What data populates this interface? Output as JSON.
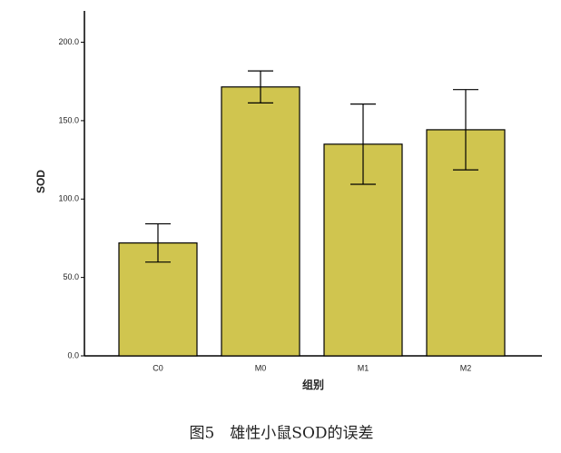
{
  "chart_data": {
    "type": "bar",
    "title": null,
    "y_label": "SOD",
    "x_label": "组别",
    "caption": "图5　雄性小鼠SOD的误差",
    "categories": [
      "C0",
      "M0",
      "M1",
      "M2"
    ],
    "values": [
      72,
      171.5,
      135,
      144.2
    ],
    "errors": [
      12.2,
      10.2,
      25.6,
      25.6
    ],
    "color": "#d0c54f",
    "ylim": [
      0,
      220
    ],
    "yticks": [
      {
        "value": 0,
        "label": "0.0"
      },
      {
        "value": 50,
        "label": "50.0"
      },
      {
        "value": 100,
        "label": "100.0"
      },
      {
        "value": 150,
        "label": "150.0"
      },
      {
        "value": 200,
        "label": "200.0"
      }
    ],
    "grid": false
  }
}
